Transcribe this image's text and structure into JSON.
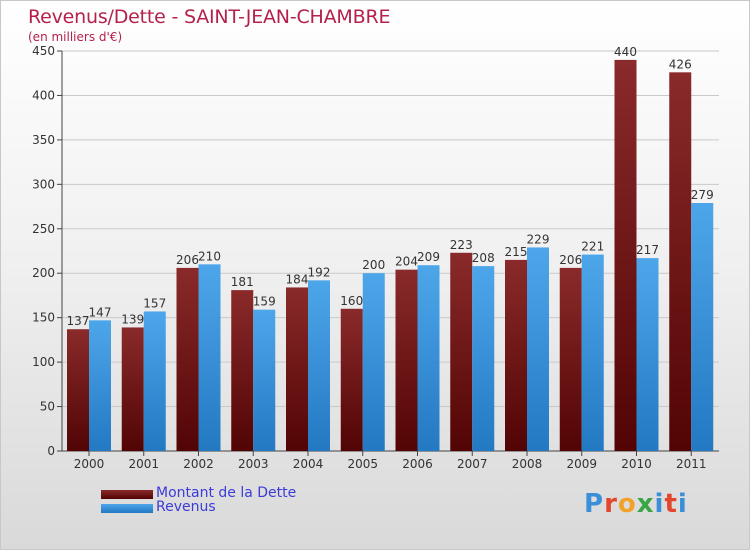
{
  "header": {
    "title": "Revenus/Dette - SAINT-JEAN-CHAMBRE",
    "subtitle": "(en milliers d'€)"
  },
  "colors": {
    "title": "#b5214a",
    "dette": "#7a1818",
    "revenus": "#3a96dc",
    "legend_text": "#3b3bd8"
  },
  "logo": {
    "text": "Proxiti",
    "letter_colors": [
      "#3a8fd8",
      "#e2462d",
      "#f0a22a",
      "#3aa545",
      "#3a8fd8",
      "#e2462d",
      "#3a8fd8"
    ]
  },
  "chart_data": {
    "type": "bar",
    "title": "Revenus/Dette - SAINT-JEAN-CHAMBRE",
    "subtitle": "(en milliers d'€)",
    "xlabel": "",
    "ylabel": "",
    "categories": [
      "2000",
      "2001",
      "2002",
      "2003",
      "2004",
      "2005",
      "2006",
      "2007",
      "2008",
      "2009",
      "2010",
      "2011"
    ],
    "series": [
      {
        "name": "Montant de la Dette",
        "color": "#7a1818",
        "values": [
          137,
          139,
          206,
          181,
          184,
          160,
          204,
          223,
          215,
          206,
          440,
          426
        ]
      },
      {
        "name": "Revenus",
        "color": "#3a96dc",
        "values": [
          147,
          157,
          210,
          159,
          192,
          200,
          209,
          208,
          229,
          221,
          217,
          279
        ]
      }
    ],
    "ylim": [
      0,
      450
    ],
    "yticks": [
      0,
      50,
      100,
      150,
      200,
      250,
      300,
      350,
      400,
      450
    ],
    "grid": true,
    "legend_position": "bottom-left",
    "data_labels": true
  }
}
